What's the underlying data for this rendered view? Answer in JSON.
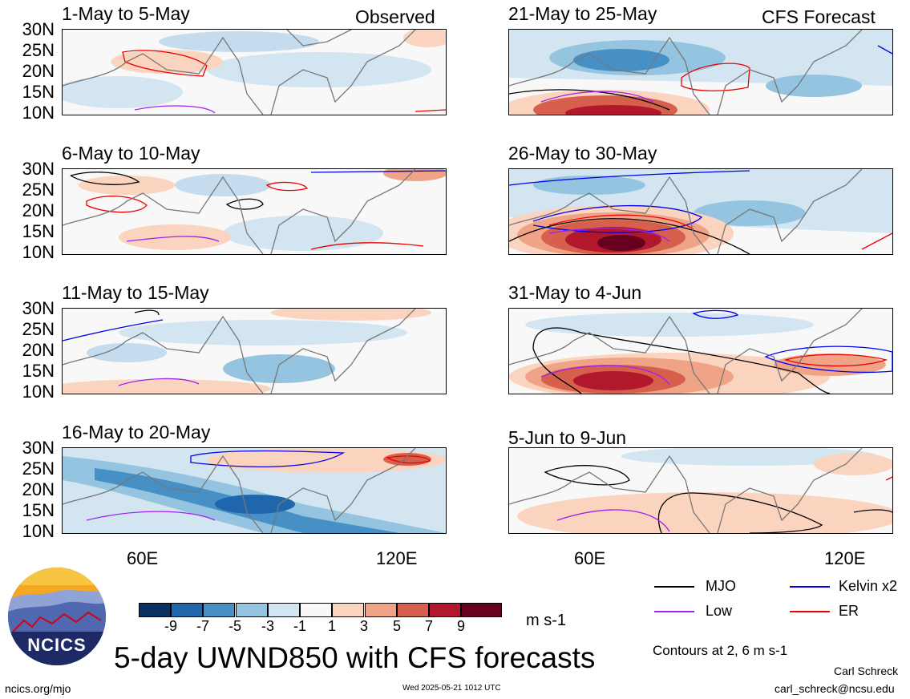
{
  "panels": [
    {
      "title": "1-May to 5-May",
      "label": "Observed"
    },
    {
      "title": "6-May to 10-May",
      "label": ""
    },
    {
      "title": "11-May to 15-May",
      "label": ""
    },
    {
      "title": "16-May to 20-May",
      "label": ""
    },
    {
      "title": "21-May to 25-May",
      "label": "CFS Forecast"
    },
    {
      "title": "26-May to 30-May",
      "label": ""
    },
    {
      "title": "31-May to 4-Jun",
      "label": ""
    },
    {
      "title": "5-Jun to 9-Jun",
      "label": ""
    }
  ],
  "lat_labels": [
    "30N",
    "25N",
    "20N",
    "15N",
    "10N"
  ],
  "lon_labels": [
    "60E",
    "120E"
  ],
  "colorbar": {
    "labels": [
      "-9",
      "-7",
      "-5",
      "-3",
      "-1",
      "1",
      "3",
      "5",
      "7",
      "9"
    ],
    "colors": [
      "#0b2f5e",
      "#1f66ad",
      "#4790c6",
      "#94c4df",
      "#d2e5f1",
      "#f8f8f8",
      "#fbd4c0",
      "#f0a487",
      "#d6604d",
      "#b2182b",
      "#67001f"
    ],
    "unit": "m s-1"
  },
  "legend": [
    {
      "name": "MJO",
      "color": "#000000"
    },
    {
      "name": "Kelvin x2",
      "color": "#0000ee"
    },
    {
      "name": "Low",
      "color": "#a020f0"
    },
    {
      "name": "ER",
      "color": "#ee0000"
    }
  ],
  "contour_note": "Contours at 2, 6 m s-1",
  "main_title": "5-day UWND850 with CFS forecasts",
  "logo_text": "NCICS",
  "footer": {
    "url": "ncics.org/mjo",
    "timestamp": "Wed 2025-05-21 1012 UTC",
    "author": "Carl Schreck",
    "email": "carl_schreck@ncsu.edu"
  }
}
